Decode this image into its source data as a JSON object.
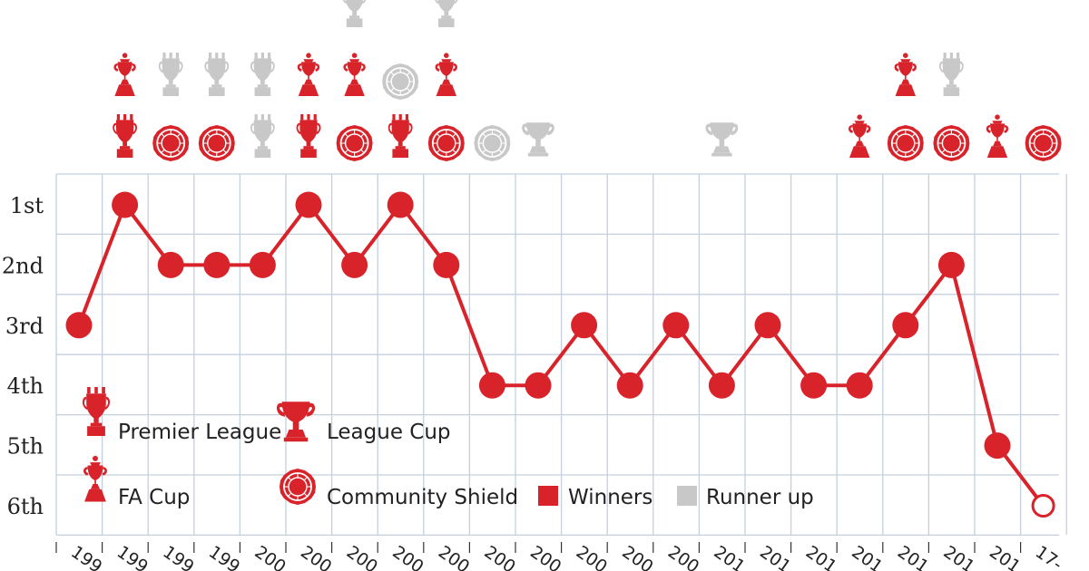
{
  "colors": {
    "winner": "#d8232a",
    "runner_up": "#c8c8c8",
    "grid": "#c4d0dd",
    "line": "#d8232a"
  },
  "legend": {
    "premier_league": "Premier League",
    "league_cup": "League Cup",
    "fa_cup": "FA Cup",
    "community_shield": "Community Shield",
    "winners": "Winners",
    "runner_up": "Runner up"
  },
  "chart_data": {
    "type": "line",
    "title": "",
    "xlabel": "",
    "ylabel": "",
    "y_categories": [
      "1st",
      "2nd",
      "3rd",
      "4th",
      "5th",
      "6th"
    ],
    "x": [
      "199",
      "199",
      "199",
      "199",
      "200",
      "200",
      "200",
      "200",
      "200",
      "200",
      "200",
      "200",
      "200",
      "200",
      "201",
      "201",
      "201",
      "201",
      "201",
      "201",
      "201",
      "17-"
    ],
    "series": [
      {
        "values": [
          3,
          1,
          2,
          2,
          2,
          1,
          2,
          1,
          2,
          4,
          4,
          3,
          4,
          3,
          4,
          3,
          4,
          4,
          3,
          2,
          5,
          6
        ]
      }
    ],
    "last_point_open": true,
    "trophies": [
      {
        "season_index": 1,
        "items": [
          [
            "premier_league",
            "winner"
          ],
          [
            "fa_cup",
            "winner"
          ]
        ]
      },
      {
        "season_index": 2,
        "items": [
          [
            "community_shield",
            "winner"
          ],
          [
            "premier_league",
            "runner_up"
          ]
        ]
      },
      {
        "season_index": 3,
        "items": [
          [
            "community_shield",
            "winner"
          ],
          [
            "premier_league",
            "runner_up"
          ]
        ]
      },
      {
        "season_index": 4,
        "items": [
          [
            "premier_league",
            "runner_up"
          ],
          [
            "premier_league",
            "runner_up"
          ]
        ]
      },
      {
        "season_index": 5,
        "items": [
          [
            "premier_league",
            "winner"
          ],
          [
            "fa_cup",
            "winner"
          ]
        ]
      },
      {
        "season_index": 6,
        "items": [
          [
            "community_shield",
            "winner"
          ],
          [
            "fa_cup",
            "winner"
          ],
          [
            "premier_league",
            "runner_up"
          ]
        ]
      },
      {
        "season_index": 7,
        "items": [
          [
            "premier_league",
            "winner"
          ],
          [
            "community_shield",
            "runner_up"
          ]
        ]
      },
      {
        "season_index": 8,
        "items": [
          [
            "community_shield",
            "winner"
          ],
          [
            "fa_cup",
            "winner"
          ],
          [
            "premier_league",
            "runner_up"
          ]
        ]
      },
      {
        "season_index": 9,
        "items": [
          [
            "community_shield",
            "runner_up"
          ]
        ]
      },
      {
        "season_index": 10,
        "items": [
          [
            "league_cup",
            "runner_up"
          ]
        ]
      },
      {
        "season_index": 14,
        "items": [
          [
            "league_cup",
            "runner_up"
          ]
        ]
      },
      {
        "season_index": 17,
        "items": [
          [
            "fa_cup",
            "winner"
          ]
        ]
      },
      {
        "season_index": 18,
        "items": [
          [
            "community_shield",
            "winner"
          ],
          [
            "fa_cup",
            "winner"
          ]
        ]
      },
      {
        "season_index": 19,
        "items": [
          [
            "community_shield",
            "winner"
          ],
          [
            "premier_league",
            "runner_up"
          ]
        ]
      },
      {
        "season_index": 20,
        "items": [
          [
            "fa_cup",
            "winner"
          ]
        ]
      },
      {
        "season_index": 21,
        "items": [
          [
            "community_shield",
            "winner"
          ]
        ]
      }
    ]
  }
}
